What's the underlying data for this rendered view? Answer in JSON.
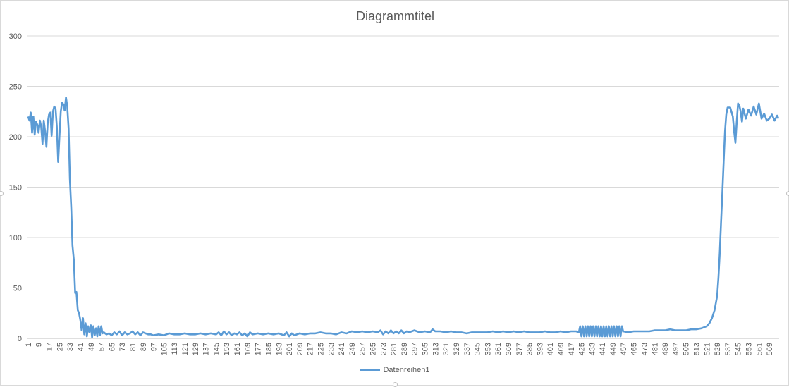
{
  "chart_data": {
    "type": "line",
    "title": "Diagrammtitel",
    "xlabel": "",
    "ylabel": "",
    "ylim": [
      0,
      300
    ],
    "yticks": [
      0,
      50,
      100,
      150,
      200,
      250,
      300
    ],
    "xlim": [
      1,
      576
    ],
    "xtick_start": 1,
    "xtick_step": 8,
    "grid": true,
    "legend_position": "bottom",
    "series": [
      {
        "name": "Datenreihen1",
        "color": "#5b9bd5",
        "points": [
          [
            1,
            220
          ],
          [
            2,
            216
          ],
          [
            3,
            224
          ],
          [
            4,
            204
          ],
          [
            5,
            220
          ],
          [
            6,
            202
          ],
          [
            7,
            215
          ],
          [
            8,
            212
          ],
          [
            9,
            204
          ],
          [
            10,
            216
          ],
          [
            11,
            210
          ],
          [
            12,
            193
          ],
          [
            13,
            216
          ],
          [
            14,
            205
          ],
          [
            15,
            190
          ],
          [
            16,
            214
          ],
          [
            17,
            222
          ],
          [
            18,
            224
          ],
          [
            19,
            201
          ],
          [
            20,
            225
          ],
          [
            21,
            230
          ],
          [
            22,
            228
          ],
          [
            23,
            210
          ],
          [
            24,
            175
          ],
          [
            25,
            200
          ],
          [
            26,
            225
          ],
          [
            27,
            234
          ],
          [
            28,
            232
          ],
          [
            29,
            226
          ],
          [
            30,
            239
          ],
          [
            31,
            230
          ],
          [
            32,
            208
          ],
          [
            33,
            158
          ],
          [
            34,
            130
          ],
          [
            35,
            92
          ],
          [
            36,
            78
          ],
          [
            37,
            45
          ],
          [
            38,
            46
          ],
          [
            39,
            28
          ],
          [
            40,
            25
          ],
          [
            41,
            18
          ],
          [
            42,
            8
          ],
          [
            43,
            20
          ],
          [
            44,
            4
          ],
          [
            45,
            15
          ],
          [
            46,
            2
          ],
          [
            47,
            12
          ],
          [
            48,
            6
          ],
          [
            49,
            13
          ],
          [
            50,
            1
          ],
          [
            51,
            12
          ],
          [
            52,
            3
          ],
          [
            53,
            10
          ],
          [
            54,
            2
          ],
          [
            55,
            12
          ],
          [
            56,
            3
          ],
          [
            57,
            12
          ],
          [
            58,
            5
          ],
          [
            59,
            6
          ],
          [
            60,
            5
          ],
          [
            61,
            4
          ],
          [
            63,
            5
          ],
          [
            65,
            3
          ],
          [
            67,
            6
          ],
          [
            69,
            4
          ],
          [
            71,
            7
          ],
          [
            73,
            3
          ],
          [
            75,
            6
          ],
          [
            77,
            4
          ],
          [
            79,
            5
          ],
          [
            81,
            7
          ],
          [
            83,
            4
          ],
          [
            85,
            6
          ],
          [
            87,
            3
          ],
          [
            89,
            6
          ],
          [
            91,
            5
          ],
          [
            93,
            4
          ],
          [
            95,
            4
          ],
          [
            97,
            3
          ],
          [
            101,
            4
          ],
          [
            105,
            3
          ],
          [
            109,
            5
          ],
          [
            113,
            4
          ],
          [
            117,
            4
          ],
          [
            121,
            5
          ],
          [
            125,
            4
          ],
          [
            129,
            4
          ],
          [
            133,
            5
          ],
          [
            137,
            4
          ],
          [
            141,
            5
          ],
          [
            145,
            4
          ],
          [
            147,
            6
          ],
          [
            149,
            3
          ],
          [
            151,
            7
          ],
          [
            153,
            4
          ],
          [
            155,
            6
          ],
          [
            157,
            3
          ],
          [
            159,
            5
          ],
          [
            161,
            4
          ],
          [
            163,
            6
          ],
          [
            165,
            3
          ],
          [
            167,
            5
          ],
          [
            169,
            2
          ],
          [
            171,
            6
          ],
          [
            173,
            4
          ],
          [
            177,
            5
          ],
          [
            181,
            4
          ],
          [
            185,
            5
          ],
          [
            189,
            4
          ],
          [
            193,
            5
          ],
          [
            197,
            3
          ],
          [
            199,
            6
          ],
          [
            201,
            2
          ],
          [
            203,
            5
          ],
          [
            205,
            3
          ],
          [
            209,
            5
          ],
          [
            213,
            4
          ],
          [
            217,
            5
          ],
          [
            221,
            5
          ],
          [
            225,
            6
          ],
          [
            229,
            5
          ],
          [
            233,
            5
          ],
          [
            237,
            4
          ],
          [
            241,
            6
          ],
          [
            245,
            5
          ],
          [
            249,
            7
          ],
          [
            253,
            6
          ],
          [
            257,
            7
          ],
          [
            261,
            6
          ],
          [
            265,
            7
          ],
          [
            269,
            6
          ],
          [
            271,
            8
          ],
          [
            273,
            4
          ],
          [
            275,
            7
          ],
          [
            277,
            5
          ],
          [
            279,
            8
          ],
          [
            281,
            5
          ],
          [
            283,
            7
          ],
          [
            285,
            5
          ],
          [
            287,
            8
          ],
          [
            289,
            5
          ],
          [
            291,
            7
          ],
          [
            293,
            6
          ],
          [
            297,
            8
          ],
          [
            301,
            6
          ],
          [
            305,
            7
          ],
          [
            309,
            6
          ],
          [
            311,
            9
          ],
          [
            313,
            7
          ],
          [
            317,
            7
          ],
          [
            321,
            6
          ],
          [
            325,
            7
          ],
          [
            329,
            6
          ],
          [
            333,
            6
          ],
          [
            337,
            5
          ],
          [
            341,
            6
          ],
          [
            345,
            6
          ],
          [
            349,
            6
          ],
          [
            353,
            6
          ],
          [
            357,
            7
          ],
          [
            361,
            6
          ],
          [
            365,
            7
          ],
          [
            369,
            6
          ],
          [
            373,
            7
          ],
          [
            377,
            6
          ],
          [
            381,
            7
          ],
          [
            385,
            6
          ],
          [
            389,
            6
          ],
          [
            393,
            6
          ],
          [
            397,
            7
          ],
          [
            401,
            6
          ],
          [
            405,
            6
          ],
          [
            409,
            7
          ],
          [
            413,
            6
          ],
          [
            417,
            7
          ],
          [
            421,
            7
          ],
          [
            423,
            6
          ],
          [
            424,
            12
          ],
          [
            425,
            2
          ],
          [
            426,
            12
          ],
          [
            427,
            2
          ],
          [
            428,
            12
          ],
          [
            429,
            2
          ],
          [
            430,
            12
          ],
          [
            431,
            2
          ],
          [
            432,
            12
          ],
          [
            433,
            2
          ],
          [
            434,
            12
          ],
          [
            435,
            2
          ],
          [
            436,
            12
          ],
          [
            437,
            2
          ],
          [
            438,
            12
          ],
          [
            439,
            2
          ],
          [
            440,
            12
          ],
          [
            441,
            2
          ],
          [
            442,
            12
          ],
          [
            443,
            2
          ],
          [
            444,
            12
          ],
          [
            445,
            2
          ],
          [
            446,
            12
          ],
          [
            447,
            2
          ],
          [
            448,
            12
          ],
          [
            449,
            2
          ],
          [
            450,
            12
          ],
          [
            451,
            2
          ],
          [
            452,
            12
          ],
          [
            453,
            2
          ],
          [
            454,
            12
          ],
          [
            455,
            2
          ],
          [
            456,
            12
          ],
          [
            457,
            7
          ],
          [
            461,
            6
          ],
          [
            465,
            7
          ],
          [
            469,
            7
          ],
          [
            473,
            7
          ],
          [
            477,
            7
          ],
          [
            481,
            8
          ],
          [
            485,
            8
          ],
          [
            489,
            8
          ],
          [
            493,
            9
          ],
          [
            497,
            8
          ],
          [
            501,
            8
          ],
          [
            505,
            8
          ],
          [
            509,
            9
          ],
          [
            513,
            9
          ],
          [
            517,
            10
          ],
          [
            521,
            12
          ],
          [
            523,
            15
          ],
          [
            525,
            20
          ],
          [
            527,
            28
          ],
          [
            529,
            42
          ],
          [
            530,
            60
          ],
          [
            531,
            85
          ],
          [
            532,
            115
          ],
          [
            533,
            145
          ],
          [
            534,
            175
          ],
          [
            535,
            205
          ],
          [
            536,
            222
          ],
          [
            537,
            229
          ],
          [
            539,
            229
          ],
          [
            541,
            220
          ],
          [
            542,
            205
          ],
          [
            543,
            194
          ],
          [
            544,
            215
          ],
          [
            545,
            233
          ],
          [
            546,
            231
          ],
          [
            547,
            225
          ],
          [
            548,
            215
          ],
          [
            549,
            228
          ],
          [
            551,
            218
          ],
          [
            553,
            227
          ],
          [
            555,
            221
          ],
          [
            557,
            230
          ],
          [
            559,
            222
          ],
          [
            561,
            233
          ],
          [
            563,
            218
          ],
          [
            565,
            223
          ],
          [
            567,
            216
          ],
          [
            569,
            218
          ],
          [
            571,
            222
          ],
          [
            573,
            216
          ],
          [
            575,
            221
          ],
          [
            576,
            218
          ]
        ]
      }
    ]
  }
}
